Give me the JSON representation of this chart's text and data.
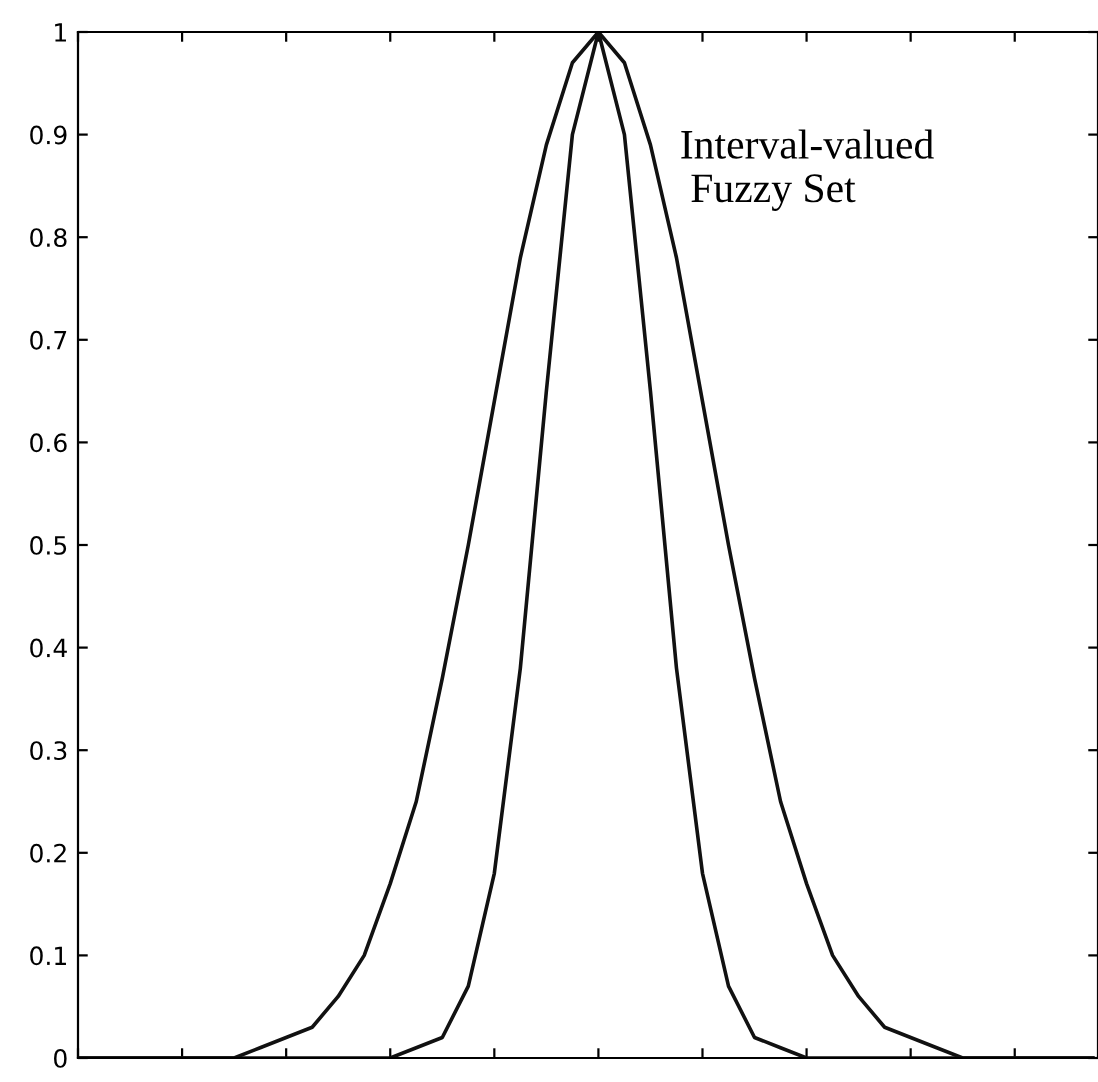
{
  "chart_data": {
    "type": "line",
    "categories": [
      null,
      null,
      null,
      null,
      null,
      null,
      null,
      null,
      null,
      null,
      null,
      null,
      null,
      null,
      null,
      null,
      null,
      null,
      null,
      null,
      null,
      null,
      null,
      null,
      null,
      null,
      null,
      null,
      null,
      null,
      null,
      null,
      null,
      null,
      null,
      null,
      null,
      null,
      null,
      null
    ],
    "series": [
      {
        "color": "#111111",
        "values": [
          0,
          0,
          0,
          0,
          0,
          0,
          0,
          0.01,
          0.02,
          0.03,
          0.06,
          0.1,
          0.17,
          0.25,
          0.37,
          0.5,
          0.64,
          0.78,
          0.89,
          0.97,
          1,
          0.97,
          0.89,
          0.78,
          0.64,
          0.5,
          0.37,
          0.25,
          0.17,
          0.1,
          0.06,
          0.03,
          0.02,
          0.01,
          0,
          0,
          0,
          0,
          0,
          0
        ]
      },
      {
        "color": "#111111",
        "values": [
          0,
          0,
          0,
          0,
          0,
          0,
          0,
          0,
          0,
          0,
          0,
          0,
          0,
          0.01,
          0.02,
          0.07,
          0.18,
          0.38,
          0.65,
          0.9,
          1,
          0.9,
          0.65,
          0.38,
          0.18,
          0.07,
          0.02,
          0.01,
          0,
          0,
          0,
          0,
          0,
          0,
          0,
          0,
          0,
          0,
          0,
          0
        ]
      }
    ],
    "ylim": [
      0,
      1
    ],
    "yticks": [
      0,
      0.1,
      0.2,
      0.3,
      0.4,
      0.5,
      0.6,
      0.7,
      0.8,
      0.9,
      1
    ],
    "annotations": [
      "Interval-valued\n Fuzzy Set"
    ],
    "tick_labels": "y",
    "grid": false,
    "legend": false,
    "marker": "none",
    "line_style": "solid"
  }
}
